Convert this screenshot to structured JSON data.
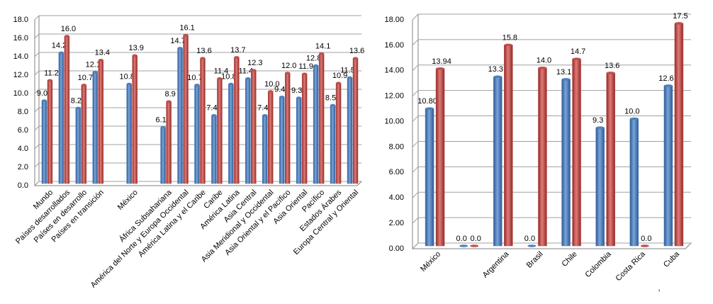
{
  "chart_data": [
    {
      "type": "bar",
      "categories": [
        "Mundo",
        "Países desarrollados",
        "Países en desarrollo",
        "Países en transición",
        null,
        "México",
        null,
        "África Subsahariana",
        "América del Norte y Europa Occidental",
        "América Latina y el Caribe",
        "Caribe",
        "América Latina",
        "Asia Central",
        "Asia Meridional y Occidental",
        "Asia Oriental y el Pacífico",
        "Asia Oriental",
        "Pacífico",
        "Estados Árabes",
        "Europa Central y Oriental"
      ],
      "series": [
        {
          "color": "#4f81bd",
          "values": [
            9.0,
            14.2,
            8.2,
            12.1,
            null,
            10.8,
            null,
            6.1,
            14.7,
            10.7,
            7.4,
            10.8,
            11.4,
            7.4,
            9.4,
            9.3,
            12.8,
            8.5,
            11.5
          ],
          "value_labels": [
            "9.0",
            "14.2",
            "8.2",
            "12.1",
            null,
            "10.8",
            null,
            "6.1",
            "14.7",
            "10.7",
            "7.4",
            "10.8",
            "11.4",
            "7.4",
            "9.4",
            "9.3",
            "12.8",
            "8.5",
            "11.5"
          ]
        },
        {
          "color": "#c0504d",
          "values": [
            11.2,
            16.0,
            10.7,
            13.4,
            null,
            13.9,
            null,
            8.9,
            16.1,
            13.6,
            11.4,
            13.7,
            12.3,
            10.0,
            12.0,
            11.9,
            14.1,
            10.9,
            13.6
          ],
          "value_labels": [
            "11.2",
            "16.0",
            "10.7",
            "13.4",
            null,
            "13.9",
            null,
            "8.9",
            "16.1",
            "13.6",
            "11.4",
            "13.7",
            "12.3",
            "10.0",
            "12.0",
            "11.9",
            "14.1",
            "10.9",
            "13.6"
          ]
        }
      ],
      "ylim": [
        0,
        18
      ],
      "yticks": [
        {
          "value": 0,
          "label": "0.0"
        },
        {
          "value": 2,
          "label": "2.0"
        },
        {
          "value": 4,
          "label": "4.0"
        },
        {
          "value": 6,
          "label": "6.0"
        },
        {
          "value": 8,
          "label": "8.0"
        },
        {
          "value": 10,
          "label": "10.0"
        },
        {
          "value": 12,
          "label": "12.0"
        },
        {
          "value": 14,
          "label": "14.0"
        },
        {
          "value": 16,
          "label": "16.0"
        },
        {
          "value": 18,
          "label": "18.0"
        }
      ],
      "grid": true
    },
    {
      "type": "bar",
      "categories": [
        "México",
        null,
        "Argentina",
        "Brasil",
        "Chile",
        "Colombia",
        "Costa Rica",
        "Cuba"
      ],
      "series": [
        {
          "color": "#4f81bd",
          "values": [
            10.8,
            0.0,
            13.3,
            0.0,
            13.1,
            9.3,
            10.0,
            12.6
          ],
          "value_labels": [
            "10.80",
            "0.0",
            "13.3",
            "0.0",
            "13.1",
            "9.3",
            "10.0",
            "12.6"
          ]
        },
        {
          "color": "#c0504d",
          "values": [
            13.94,
            0.0,
            15.8,
            14.0,
            14.7,
            13.6,
            0.0,
            17.5
          ],
          "value_labels": [
            "13.94",
            "0.0",
            "15.8",
            "14.0",
            "14.7",
            "13.6",
            "0.0",
            "17.5"
          ]
        }
      ],
      "annotation": ",",
      "ylim": [
        0,
        18
      ],
      "yticks": [
        {
          "value": 0,
          "label": "0.00"
        },
        {
          "value": 2,
          "label": "2.00"
        },
        {
          "value": 4,
          "label": "4.00"
        },
        {
          "value": 6,
          "label": "6.00"
        },
        {
          "value": 8,
          "label": "8.00"
        },
        {
          "value": 10,
          "label": "10.00"
        },
        {
          "value": 12,
          "label": "12.00"
        },
        {
          "value": 14,
          "label": "14.00"
        },
        {
          "value": 16,
          "label": "16.00"
        },
        {
          "value": 18,
          "label": "18.00"
        }
      ],
      "grid": true
    }
  ]
}
